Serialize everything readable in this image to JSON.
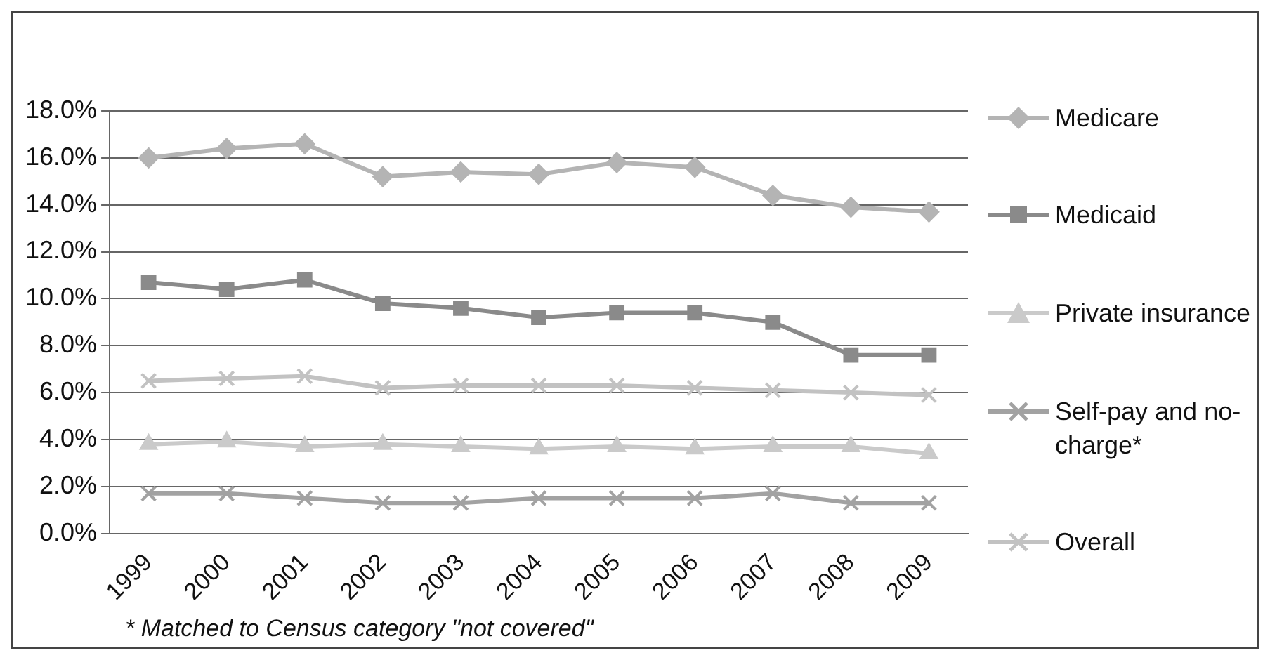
{
  "chart_data": {
    "type": "line",
    "categories": [
      "1999",
      "2000",
      "2001",
      "2002",
      "2003",
      "2004",
      "2005",
      "2006",
      "2007",
      "2008",
      "2009"
    ],
    "series": [
      {
        "name": "Medicare",
        "color": "#b4b4b4",
        "marker": "diamond",
        "values": [
          16.0,
          16.4,
          16.6,
          15.2,
          15.4,
          15.3,
          15.8,
          15.6,
          14.4,
          13.9,
          13.7
        ]
      },
      {
        "name": "Medicaid",
        "color": "#8a8a8a",
        "marker": "square",
        "values": [
          10.7,
          10.4,
          10.8,
          9.8,
          9.6,
          9.2,
          9.4,
          9.4,
          9.0,
          7.6,
          7.6
        ]
      },
      {
        "name": "Private insurance",
        "color": "#cacaca",
        "marker": "triangle",
        "values": [
          3.8,
          3.9,
          3.7,
          3.8,
          3.7,
          3.6,
          3.7,
          3.6,
          3.7,
          3.7,
          3.4
        ]
      },
      {
        "name": "Self-pay and no-charge*",
        "color": "#a2a2a2",
        "marker": "cross",
        "values": [
          1.7,
          1.7,
          1.5,
          1.3,
          1.3,
          1.5,
          1.5,
          1.5,
          1.7,
          1.3,
          1.3
        ]
      },
      {
        "name": "Overall",
        "color": "#c2c2c2",
        "marker": "cross",
        "values": [
          6.5,
          6.6,
          6.7,
          6.2,
          6.3,
          6.3,
          6.3,
          6.2,
          6.1,
          6.0,
          5.9
        ]
      }
    ],
    "ylim": [
      0,
      18
    ],
    "yticks": [
      {
        "value": 0,
        "label": "0.0%"
      },
      {
        "value": 2,
        "label": "2.0%"
      },
      {
        "value": 4,
        "label": "4.0%"
      },
      {
        "value": 6,
        "label": "6.0%"
      },
      {
        "value": 8,
        "label": "8.0%"
      },
      {
        "value": 10,
        "label": "10.0%"
      },
      {
        "value": 12,
        "label": "12.0%"
      },
      {
        "value": 14,
        "label": "14.0%"
      },
      {
        "value": 16,
        "label": "16.0%"
      },
      {
        "value": 18,
        "label": "18.0%"
      }
    ],
    "grid": "y",
    "legend": "right",
    "line_style": "solid",
    "annotations": [
      "* Matched to Census category \"not covered\""
    ]
  }
}
